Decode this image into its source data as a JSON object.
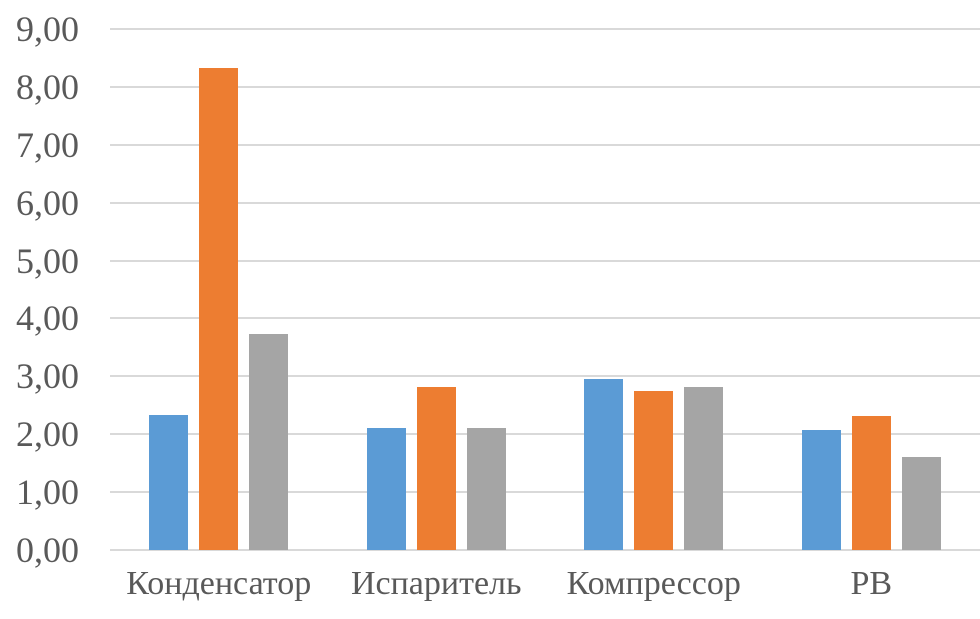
{
  "page": {
    "background_color": "#ffffff",
    "text_color": "#595959",
    "gridline_color": "#d9d9d9"
  },
  "chart_data": {
    "type": "bar",
    "title": "",
    "xlabel": "",
    "ylabel": "",
    "categories": [
      "Конденсатор",
      "Испаритель",
      "Компрессор",
      "РВ"
    ],
    "series": [
      {
        "name": "series-1-blue",
        "color": "#5b9bd5",
        "values": [
          2.33,
          2.11,
          2.96,
          2.08
        ]
      },
      {
        "name": "series-2-orange",
        "color": "#ed7d31",
        "values": [
          8.33,
          2.82,
          2.75,
          2.32
        ]
      },
      {
        "name": "series-3-gray",
        "color": "#a5a5a5",
        "values": [
          3.73,
          2.11,
          2.81,
          1.6
        ]
      }
    ],
    "ylim": [
      0,
      9
    ],
    "ytick_step": 1,
    "ytick_labels": [
      "0,00",
      "1,00",
      "2,00",
      "3,00",
      "4,00",
      "5,00",
      "6,00",
      "7,00",
      "8,00",
      "9,00"
    ],
    "grid": true,
    "legend_position": "none"
  }
}
